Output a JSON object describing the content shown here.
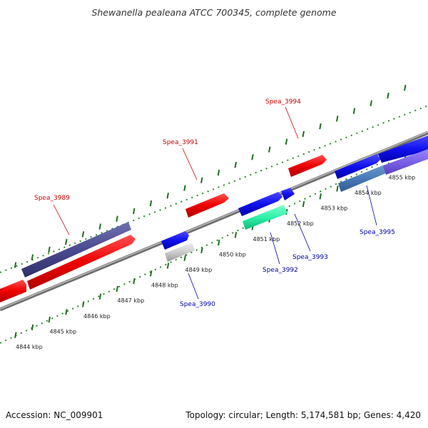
{
  "title": "Shewanella pealeana ATCC 700345, complete genome",
  "footer": {
    "accession": "Accession: NC_009901",
    "summary": "Topology: circular; Length: 5,174,581 bp; Genes: 4,420"
  },
  "colors": {
    "backbone": "#8c8c8c",
    "ruler_dot": "#2e8b2e",
    "ruler_tick": "#1f6f1f",
    "forward_label": "#cc0000",
    "reverse_label": "#0000b0"
  },
  "ticks": [
    {
      "kbp": 4844,
      "label": "4844 kbp"
    },
    {
      "kbp": 4845,
      "label": "4845 kbp"
    },
    {
      "kbp": 4846,
      "label": "4846 kbp"
    },
    {
      "kbp": 4847,
      "label": "4847 kbp"
    },
    {
      "kbp": 4848,
      "label": "4848 kbp"
    },
    {
      "kbp": 4849,
      "label": "4849 kbp"
    },
    {
      "kbp": 4850,
      "label": "4850 kbp"
    },
    {
      "kbp": 4851,
      "label": "4851 kbp"
    },
    {
      "kbp": 4852,
      "label": "4852 kbp"
    },
    {
      "kbp": 4853,
      "label": "4853 kbp"
    },
    {
      "kbp": 4854,
      "label": "4854 kbp"
    },
    {
      "kbp": 4855,
      "label": "4855 kbp"
    }
  ],
  "labels": {
    "spea3989": "Spea_3989",
    "spea3990": "Spea_3990",
    "spea3991": "Spea_3991",
    "spea3992": "Spea_3992",
    "spea3993": "Spea_3993",
    "spea3994": "Spea_3994",
    "spea3995": "Spea_3995"
  }
}
